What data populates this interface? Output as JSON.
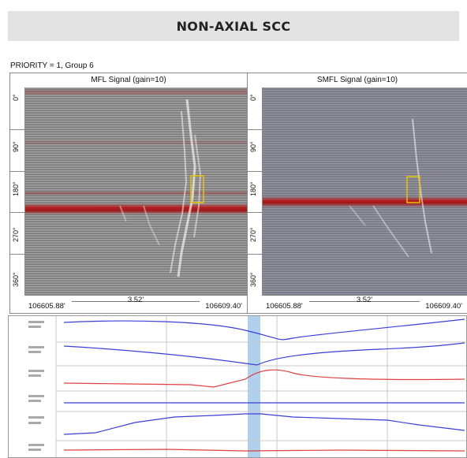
{
  "banner": {
    "title": "NON-AXIAL SCC"
  },
  "priority": {
    "text": "PRIORITY = 1, Group 6"
  },
  "panels": [
    {
      "title": "MFL Signal (gain=10)",
      "angles": [
        "0°",
        "90°",
        "180°",
        "270°",
        "360°"
      ],
      "distance_label": "3.52'",
      "start_label": "106605.88'",
      "end_label": "106609.40'"
    },
    {
      "title": "SMFL Signal (gain=10)",
      "angles": [
        "0°",
        "90°",
        "180°",
        "270°",
        "360°"
      ],
      "distance_label": "3.52'",
      "start_label": "106605.88'",
      "end_label": "106609.40'"
    }
  ],
  "colors": {
    "banner_bg": "#e3e3e3",
    "highlight_box": "#e6c400",
    "signal_red": "#b81818",
    "trace_blue": "#3a3fd8",
    "trace_red": "#e04040",
    "band": "#9cc6ea"
  }
}
